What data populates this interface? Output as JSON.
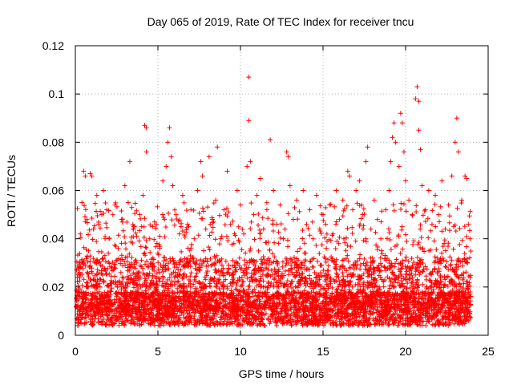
{
  "chart_data": {
    "type": "scatter",
    "title": "Day 065 of 2019, Rate Of TEC Index for receiver tncu",
    "xlabel": "GPS time / hours",
    "ylabel": "ROTI / TECUs",
    "xlim": [
      0,
      25
    ],
    "ylim": [
      0,
      0.12
    ],
    "xticks": [
      0,
      5,
      10,
      15,
      20,
      25
    ],
    "xtick_labels": [
      "0",
      "5",
      "10",
      "15",
      "20",
      "25"
    ],
    "yticks": [
      0,
      0.02,
      0.04,
      0.06,
      0.08,
      0.1,
      0.12
    ],
    "ytick_labels": [
      "0",
      "0.02",
      "0.04",
      "0.06",
      "0.08",
      "0.1",
      "0.12"
    ],
    "grid": true,
    "marker": "plus",
    "series": [
      {
        "name": "ROTI",
        "color": "#ff0000",
        "points": [
          [
            0.1,
            0.012
          ],
          [
            0.2,
            0.025
          ],
          [
            0.3,
            0.042
          ],
          [
            0.4,
            0.055
          ],
          [
            0.5,
            0.068
          ],
          [
            0.6,
            0.066
          ],
          [
            0.7,
            0.048
          ],
          [
            0.8,
            0.035
          ],
          [
            0.9,
            0.067
          ],
          [
            1.0,
            0.066
          ],
          [
            1.1,
            0.044
          ],
          [
            1.2,
            0.03
          ],
          [
            1.3,
            0.058
          ],
          [
            1.4,
            0.046
          ],
          [
            1.5,
            0.02
          ],
          [
            1.6,
            0.05
          ],
          [
            1.7,
            0.06
          ],
          [
            1.8,
            0.04
          ],
          [
            1.9,
            0.052
          ],
          [
            2.0,
            0.034
          ],
          [
            2.2,
            0.028
          ],
          [
            2.4,
            0.054
          ],
          [
            2.6,
            0.036
          ],
          [
            2.8,
            0.048
          ],
          [
            3.0,
            0.062
          ],
          [
            3.2,
            0.055
          ],
          [
            3.3,
            0.072
          ],
          [
            3.5,
            0.044
          ],
          [
            3.7,
            0.03
          ],
          [
            3.9,
            0.05
          ],
          [
            4.1,
            0.058
          ],
          [
            4.2,
            0.087
          ],
          [
            4.3,
            0.086
          ],
          [
            4.3,
            0.076
          ],
          [
            4.5,
            0.04
          ],
          [
            4.7,
            0.032
          ],
          [
            4.9,
            0.046
          ],
          [
            5.1,
            0.036
          ],
          [
            5.3,
            0.064
          ],
          [
            5.5,
            0.07
          ],
          [
            5.6,
            0.08
          ],
          [
            5.7,
            0.086
          ],
          [
            5.8,
            0.074
          ],
          [
            5.9,
            0.062
          ],
          [
            6.1,
            0.05
          ],
          [
            6.3,
            0.042
          ],
          [
            6.5,
            0.058
          ],
          [
            6.8,
            0.046
          ],
          [
            7.0,
            0.052
          ],
          [
            7.2,
            0.04
          ],
          [
            7.4,
            0.06
          ],
          [
            7.6,
            0.072
          ],
          [
            7.7,
            0.066
          ],
          [
            7.9,
            0.044
          ],
          [
            8.1,
            0.074
          ],
          [
            8.3,
            0.048
          ],
          [
            8.5,
            0.056
          ],
          [
            8.6,
            0.078
          ],
          [
            8.8,
            0.04
          ],
          [
            9.0,
            0.052
          ],
          [
            9.2,
            0.068
          ],
          [
            9.4,
            0.046
          ],
          [
            9.6,
            0.038
          ],
          [
            9.8,
            0.06
          ],
          [
            10.0,
            0.054
          ],
          [
            10.2,
            0.042
          ],
          [
            10.4,
            0.07
          ],
          [
            10.5,
            0.107
          ],
          [
            10.5,
            0.089
          ],
          [
            10.6,
            0.072
          ],
          [
            10.8,
            0.05
          ],
          [
            11.0,
            0.058
          ],
          [
            11.2,
            0.065
          ],
          [
            11.4,
            0.044
          ],
          [
            11.6,
            0.052
          ],
          [
            11.8,
            0.081
          ],
          [
            12.0,
            0.06
          ],
          [
            12.2,
            0.046
          ],
          [
            12.4,
            0.054
          ],
          [
            12.6,
            0.04
          ],
          [
            12.8,
            0.076
          ],
          [
            12.9,
            0.074
          ],
          [
            13.0,
            0.062
          ],
          [
            13.2,
            0.048
          ],
          [
            13.4,
            0.056
          ],
          [
            13.6,
            0.036
          ],
          [
            13.8,
            0.06
          ],
          [
            14.0,
            0.046
          ],
          [
            14.2,
            0.052
          ],
          [
            14.4,
            0.04
          ],
          [
            14.6,
            0.058
          ],
          [
            14.8,
            0.044
          ],
          [
            15.0,
            0.05
          ],
          [
            15.2,
            0.036
          ],
          [
            15.4,
            0.054
          ],
          [
            15.6,
            0.042
          ],
          [
            15.8,
            0.06
          ],
          [
            16.0,
            0.048
          ],
          [
            16.2,
            0.056
          ],
          [
            16.5,
            0.068
          ],
          [
            16.6,
            0.066
          ],
          [
            16.8,
            0.052
          ],
          [
            17.0,
            0.06
          ],
          [
            17.2,
            0.064
          ],
          [
            17.4,
            0.05
          ],
          [
            17.6,
            0.072
          ],
          [
            17.7,
            0.078
          ],
          [
            17.9,
            0.044
          ],
          [
            18.1,
            0.056
          ],
          [
            18.3,
            0.048
          ],
          [
            18.5,
            0.04
          ],
          [
            18.8,
            0.052
          ],
          [
            19.0,
            0.06
          ],
          [
            19.1,
            0.072
          ],
          [
            19.2,
            0.082
          ],
          [
            19.3,
            0.088
          ],
          [
            19.4,
            0.08
          ],
          [
            19.6,
            0.07
          ],
          [
            19.7,
            0.092
          ],
          [
            19.8,
            0.088
          ],
          [
            19.9,
            0.076
          ],
          [
            20.0,
            0.064
          ],
          [
            20.2,
            0.056
          ],
          [
            20.4,
            0.05
          ],
          [
            20.6,
            0.098
          ],
          [
            20.7,
            0.103
          ],
          [
            20.8,
            0.097
          ],
          [
            20.8,
            0.085
          ],
          [
            20.9,
            0.077
          ],
          [
            21.0,
            0.062
          ],
          [
            21.2,
            0.052
          ],
          [
            21.4,
            0.06
          ],
          [
            21.6,
            0.046
          ],
          [
            21.8,
            0.058
          ],
          [
            22.0,
            0.05
          ],
          [
            22.2,
            0.064
          ],
          [
            22.4,
            0.044
          ],
          [
            22.6,
            0.054
          ],
          [
            22.8,
            0.066
          ],
          [
            23.0,
            0.08
          ],
          [
            23.1,
            0.09
          ],
          [
            23.2,
            0.076
          ],
          [
            23.4,
            0.056
          ],
          [
            23.6,
            0.066
          ],
          [
            23.7,
            0.065
          ],
          [
            23.8,
            0.046
          ],
          [
            23.9,
            0.04
          ]
        ]
      }
    ]
  }
}
